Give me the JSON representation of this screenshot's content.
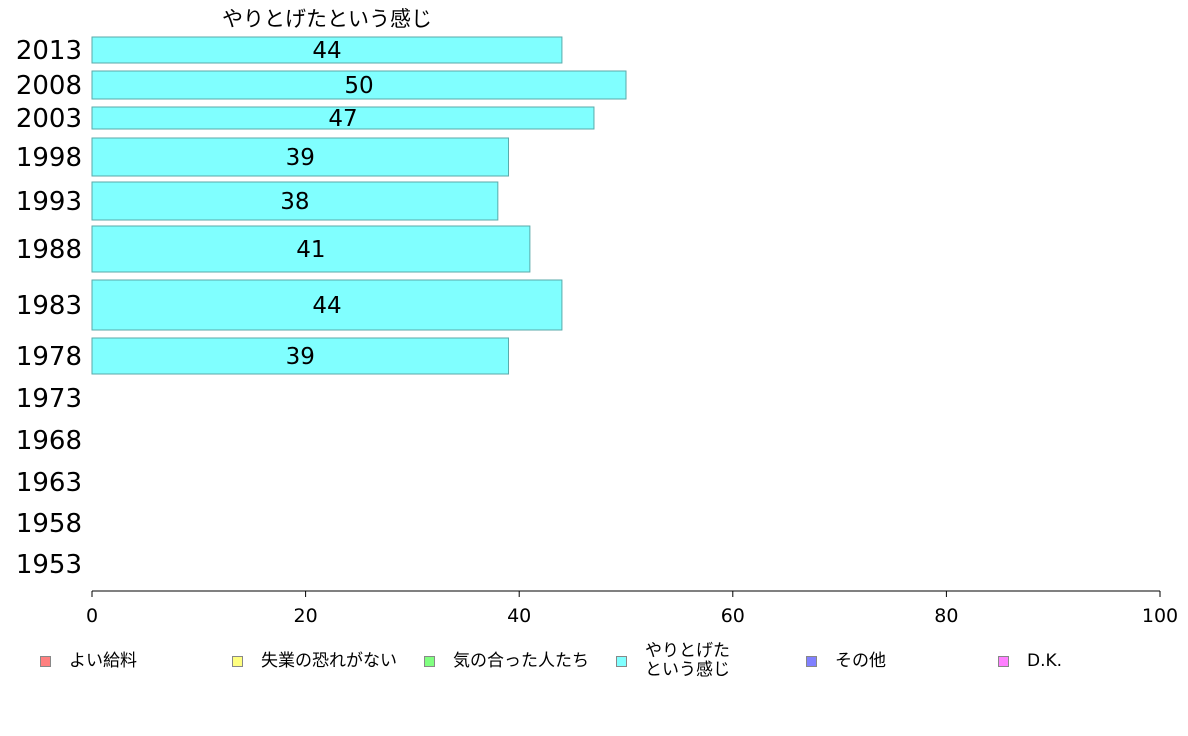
{
  "chart_data": {
    "type": "bar",
    "orientation": "horizontal",
    "title": "やりとげたという感じ",
    "categories": [
      "2013",
      "2008",
      "2003",
      "1998",
      "1993",
      "1988",
      "1983",
      "1978",
      "1973",
      "1968",
      "1963",
      "1958",
      "1953"
    ],
    "series": [
      {
        "name": "やりとげたという感じ",
        "color": "#80ffff",
        "values": [
          44,
          50,
          47,
          39,
          38,
          41,
          44,
          39,
          null,
          null,
          null,
          null,
          null
        ]
      }
    ],
    "xlim": [
      0,
      100
    ],
    "xticks": [
      "0",
      "20",
      "40",
      "60",
      "80",
      "100"
    ],
    "grid": false,
    "legend_position": "bottom"
  },
  "legend": [
    {
      "label": "よい給料",
      "color": "#ff8080"
    },
    {
      "label": "失業の恐れがない",
      "color": "#ffff80"
    },
    {
      "label": "気の合った人たち",
      "color": "#80ff80"
    },
    {
      "label": "やりとげた\nという感じ",
      "color": "#80ffff"
    },
    {
      "label": "その他",
      "color": "#8080ff"
    },
    {
      "label": "D.K.",
      "color": "#ff80ff"
    }
  ]
}
